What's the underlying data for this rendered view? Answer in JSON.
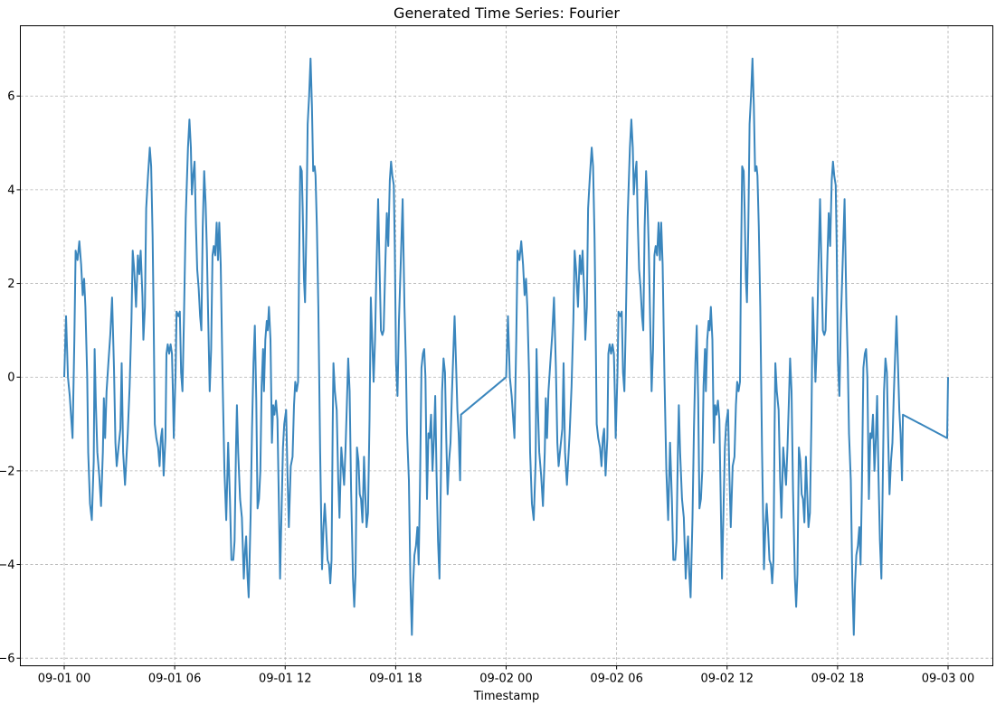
{
  "chart_data": {
    "type": "line",
    "title": "Generated Time Series: Fourier",
    "xlabel": "Timestamp",
    "ylabel": "",
    "x_range_hours": [
      0,
      48
    ],
    "ylim": [
      -6.16,
      7.5
    ],
    "grid": true,
    "x_ticks": [
      {
        "hour": 0,
        "label": "09-01 00"
      },
      {
        "hour": 6,
        "label": "09-01 06"
      },
      {
        "hour": 12,
        "label": "09-01 12"
      },
      {
        "hour": 18,
        "label": "09-01 18"
      },
      {
        "hour": 24,
        "label": "09-02 00"
      },
      {
        "hour": 30,
        "label": "09-02 06"
      },
      {
        "hour": 36,
        "label": "09-02 12"
      },
      {
        "hour": 42,
        "label": "09-02 18"
      },
      {
        "hour": 48,
        "label": "09-03 00"
      }
    ],
    "y_ticks": [
      {
        "value": -6,
        "label": "−6"
      },
      {
        "value": -4,
        "label": "−4"
      },
      {
        "value": -2,
        "label": "−2"
      },
      {
        "value": 0,
        "label": "0"
      },
      {
        "value": 2,
        "label": "2"
      },
      {
        "value": 4,
        "label": "4"
      },
      {
        "value": 6,
        "label": "6"
      }
    ],
    "series": [
      {
        "color": "#3a86bd",
        "points": [
          [
            0.0,
            0.0
          ],
          [
            0.1,
            1.3
          ],
          [
            0.2,
            0.0
          ],
          [
            0.3,
            -0.4
          ],
          [
            0.45,
            -1.3
          ],
          [
            0.55,
            0.8
          ],
          [
            0.62,
            2.7
          ],
          [
            0.72,
            2.5
          ],
          [
            0.82,
            2.9
          ],
          [
            0.92,
            2.4
          ],
          [
            1.0,
            1.75
          ],
          [
            1.08,
            2.1
          ],
          [
            1.15,
            1.5
          ],
          [
            1.25,
            0.0
          ],
          [
            1.3,
            -1.6
          ],
          [
            1.4,
            -2.7
          ],
          [
            1.5,
            -3.05
          ],
          [
            1.6,
            -1.8
          ],
          [
            1.65,
            0.6
          ],
          [
            1.72,
            -0.6
          ],
          [
            1.8,
            -1.6
          ],
          [
            1.9,
            -2.1
          ],
          [
            2.0,
            -2.75
          ],
          [
            2.1,
            -1.6
          ],
          [
            2.15,
            -0.45
          ],
          [
            2.22,
            -1.3
          ],
          [
            2.3,
            -0.3
          ],
          [
            2.4,
            0.3
          ],
          [
            2.5,
            0.9
          ],
          [
            2.6,
            1.7
          ],
          [
            2.7,
            0.2
          ],
          [
            2.78,
            -1.4
          ],
          [
            2.85,
            -1.9
          ],
          [
            2.95,
            -1.5
          ],
          [
            3.05,
            -1.1
          ],
          [
            3.12,
            0.3
          ],
          [
            3.2,
            -1.6
          ],
          [
            3.3,
            -2.3
          ],
          [
            3.45,
            -1.2
          ],
          [
            3.55,
            -0.2
          ],
          [
            3.65,
            1.2
          ],
          [
            3.72,
            2.7
          ],
          [
            3.8,
            2.3
          ],
          [
            3.9,
            1.5
          ],
          [
            4.0,
            2.6
          ],
          [
            4.08,
            2.2
          ],
          [
            4.15,
            2.7
          ],
          [
            4.25,
            1.7
          ],
          [
            4.3,
            0.8
          ],
          [
            4.38,
            1.5
          ],
          [
            4.45,
            3.6
          ],
          [
            4.55,
            4.3
          ],
          [
            4.65,
            4.9
          ],
          [
            4.72,
            4.5
          ],
          [
            4.8,
            3.0
          ],
          [
            4.85,
            1.5
          ],
          [
            4.92,
            -1.0
          ],
          [
            5.0,
            -1.3
          ],
          [
            5.1,
            -1.5
          ],
          [
            5.18,
            -1.9
          ],
          [
            5.25,
            -1.3
          ],
          [
            5.32,
            -1.1
          ],
          [
            5.4,
            -2.1
          ],
          [
            5.5,
            -1.3
          ],
          [
            5.55,
            0.5
          ],
          [
            5.62,
            0.7
          ],
          [
            5.7,
            0.5
          ],
          [
            5.78,
            0.7
          ],
          [
            5.85,
            0.5
          ],
          [
            5.9,
            -0.3
          ],
          [
            5.95,
            -1.3
          ],
          [
            6.05,
            0.1
          ],
          [
            6.1,
            1.4
          ],
          [
            6.2,
            1.3
          ],
          [
            6.28,
            1.4
          ],
          [
            6.35,
            0.1
          ],
          [
            6.42,
            -0.3
          ],
          [
            6.5,
            1.2
          ],
          [
            6.6,
            3.4
          ],
          [
            6.72,
            4.9
          ],
          [
            6.8,
            5.5
          ],
          [
            6.88,
            4.9
          ],
          [
            6.93,
            3.9
          ],
          [
            7.0,
            4.3
          ],
          [
            7.08,
            4.6
          ],
          [
            7.15,
            3.3
          ],
          [
            7.22,
            2.3
          ],
          [
            7.3,
            1.9
          ],
          [
            7.38,
            1.3
          ],
          [
            7.45,
            1.0
          ],
          [
            7.52,
            3.2
          ],
          [
            7.6,
            4.4
          ],
          [
            7.68,
            3.7
          ],
          [
            7.75,
            2.7
          ],
          [
            7.82,
            1.2
          ],
          [
            7.9,
            -0.3
          ],
          [
            7.98,
            0.6
          ],
          [
            8.05,
            2.6
          ],
          [
            8.12,
            2.8
          ],
          [
            8.2,
            2.6
          ],
          [
            8.28,
            3.3
          ],
          [
            8.35,
            2.5
          ],
          [
            8.42,
            3.3
          ],
          [
            8.5,
            2.4
          ],
          [
            8.6,
            0.0
          ],
          [
            8.7,
            -2.0
          ],
          [
            8.8,
            -3.05
          ],
          [
            8.9,
            -1.4
          ],
          [
            9.0,
            -2.6
          ],
          [
            9.08,
            -3.9
          ],
          [
            9.18,
            -3.9
          ],
          [
            9.25,
            -3.5
          ],
          [
            9.33,
            -1.5
          ],
          [
            9.38,
            -0.6
          ],
          [
            9.45,
            -1.6
          ],
          [
            9.55,
            -2.6
          ],
          [
            9.65,
            -3.0
          ],
          [
            9.75,
            -4.3
          ],
          [
            9.82,
            -3.7
          ],
          [
            9.88,
            -3.4
          ],
          [
            9.95,
            -4.2
          ],
          [
            10.02,
            -4.7
          ],
          [
            10.12,
            -3.0
          ],
          [
            10.2,
            -1.1
          ],
          [
            10.28,
            0.3
          ],
          [
            10.35,
            1.1
          ],
          [
            10.43,
            -0.5
          ],
          [
            10.5,
            -2.8
          ],
          [
            10.58,
            -2.6
          ],
          [
            10.65,
            -2.0
          ],
          [
            10.72,
            -0.2
          ],
          [
            10.8,
            0.6
          ],
          [
            10.85,
            -0.3
          ],
          [
            10.92,
            0.8
          ],
          [
            11.0,
            1.2
          ],
          [
            11.05,
            1.0
          ],
          [
            11.12,
            1.5
          ],
          [
            11.2,
            0.8
          ],
          [
            11.28,
            -1.4
          ],
          [
            11.35,
            -0.6
          ],
          [
            11.42,
            -0.8
          ],
          [
            11.5,
            -0.5
          ],
          [
            11.58,
            -0.9
          ],
          [
            11.65,
            -2.5
          ],
          [
            11.72,
            -4.3
          ],
          [
            11.8,
            -2.9
          ],
          [
            11.88,
            -1.5
          ],
          [
            11.95,
            -1.0
          ],
          [
            12.05,
            -0.7
          ],
          [
            12.12,
            -2.0
          ],
          [
            12.2,
            -3.2
          ],
          [
            12.3,
            -1.9
          ],
          [
            12.4,
            -1.7
          ],
          [
            12.48,
            -0.6
          ],
          [
            12.55,
            -0.1
          ],
          [
            12.62,
            -0.3
          ],
          [
            12.7,
            -0.1
          ],
          [
            12.75,
            2.2
          ],
          [
            12.82,
            4.5
          ],
          [
            12.9,
            4.4
          ],
          [
            12.95,
            3.6
          ],
          [
            13.02,
            2.1
          ],
          [
            13.08,
            1.6
          ],
          [
            13.15,
            3.2
          ],
          [
            13.22,
            5.4
          ],
          [
            13.3,
            6.0
          ],
          [
            13.38,
            6.8
          ],
          [
            13.45,
            5.8
          ],
          [
            13.52,
            4.4
          ],
          [
            13.6,
            4.5
          ],
          [
            13.65,
            4.3
          ],
          [
            13.72,
            3.2
          ],
          [
            13.8,
            1.5
          ],
          [
            13.9,
            -1.6
          ],
          [
            14.0,
            -4.1
          ],
          [
            14.08,
            -3.2
          ],
          [
            14.15,
            -2.7
          ],
          [
            14.22,
            -3.2
          ],
          [
            14.3,
            -3.9
          ],
          [
            14.38,
            -4.0
          ],
          [
            14.45,
            -4.4
          ],
          [
            14.52,
            -3.9
          ],
          [
            14.58,
            -1.0
          ],
          [
            14.62,
            0.3
          ],
          [
            14.7,
            -0.3
          ],
          [
            14.8,
            -0.7
          ],
          [
            14.88,
            -2.2
          ],
          [
            14.95,
            -3.0
          ],
          [
            15.05,
            -1.5
          ],
          [
            15.12,
            -1.9
          ],
          [
            15.2,
            -2.3
          ],
          [
            15.28,
            -1.5
          ],
          [
            15.35,
            -0.6
          ],
          [
            15.42,
            0.4
          ],
          [
            15.5,
            -0.3
          ],
          [
            15.58,
            -2.4
          ],
          [
            15.68,
            -4.3
          ],
          [
            15.75,
            -4.9
          ],
          [
            15.82,
            -4.2
          ],
          [
            15.9,
            -1.5
          ],
          [
            15.98,
            -1.8
          ],
          [
            16.05,
            -2.5
          ],
          [
            16.12,
            -2.6
          ],
          [
            16.2,
            -3.1
          ],
          [
            16.28,
            -1.7
          ],
          [
            16.35,
            -2.5
          ],
          [
            16.42,
            -3.2
          ],
          [
            16.5,
            -2.9
          ],
          [
            16.58,
            -0.9
          ],
          [
            16.65,
            1.7
          ],
          [
            16.72,
            0.9
          ],
          [
            16.8,
            -0.1
          ],
          [
            16.88,
            0.8
          ],
          [
            16.95,
            2.2
          ],
          [
            17.05,
            3.8
          ],
          [
            17.12,
            2.4
          ],
          [
            17.2,
            1.0
          ],
          [
            17.28,
            0.9
          ],
          [
            17.35,
            1.0
          ],
          [
            17.45,
            2.6
          ],
          [
            17.52,
            3.5
          ],
          [
            17.6,
            2.8
          ],
          [
            17.68,
            4.2
          ],
          [
            17.75,
            4.6
          ],
          [
            17.82,
            4.3
          ],
          [
            17.9,
            4.1
          ],
          [
            17.95,
            2.8
          ],
          [
            18.02,
            0.3
          ],
          [
            18.1,
            -0.4
          ],
          [
            18.18,
            1.2
          ],
          [
            18.28,
            2.5
          ],
          [
            18.38,
            3.8
          ],
          [
            18.48,
            1.5
          ],
          [
            18.55,
            0.4
          ],
          [
            18.62,
            -1.2
          ],
          [
            18.72,
            -2.2
          ],
          [
            18.8,
            -4.4
          ],
          [
            18.88,
            -5.5
          ],
          [
            18.95,
            -4.4
          ],
          [
            19.02,
            -3.8
          ],
          [
            19.1,
            -3.6
          ],
          [
            19.18,
            -3.2
          ],
          [
            19.25,
            -4.0
          ],
          [
            19.32,
            -2.4
          ],
          [
            19.4,
            0.2
          ],
          [
            19.48,
            0.5
          ],
          [
            19.55,
            0.6
          ],
          [
            19.62,
            0.0
          ],
          [
            19.7,
            -2.6
          ],
          [
            19.78,
            -1.2
          ],
          [
            19.85,
            -1.3
          ],
          [
            19.92,
            -0.8
          ],
          [
            20.0,
            -2.0
          ],
          [
            20.08,
            -1.3
          ],
          [
            20.15,
            -0.4
          ],
          [
            20.22,
            -2.1
          ],
          [
            20.3,
            -3.5
          ],
          [
            20.38,
            -4.3
          ],
          [
            20.45,
            -2.4
          ],
          [
            20.52,
            -0.3
          ],
          [
            20.6,
            0.4
          ],
          [
            20.68,
            0.1
          ],
          [
            20.75,
            -1.3
          ],
          [
            20.82,
            -2.5
          ],
          [
            20.9,
            -1.8
          ],
          [
            20.98,
            -1.4
          ],
          [
            21.05,
            -0.4
          ],
          [
            21.12,
            0.4
          ],
          [
            21.2,
            1.3
          ],
          [
            21.28,
            0.3
          ],
          [
            21.35,
            -0.7
          ],
          [
            21.42,
            -1.2
          ],
          [
            21.5,
            -2.2
          ],
          [
            21.55,
            -0.8
          ]
        ]
      }
    ]
  }
}
